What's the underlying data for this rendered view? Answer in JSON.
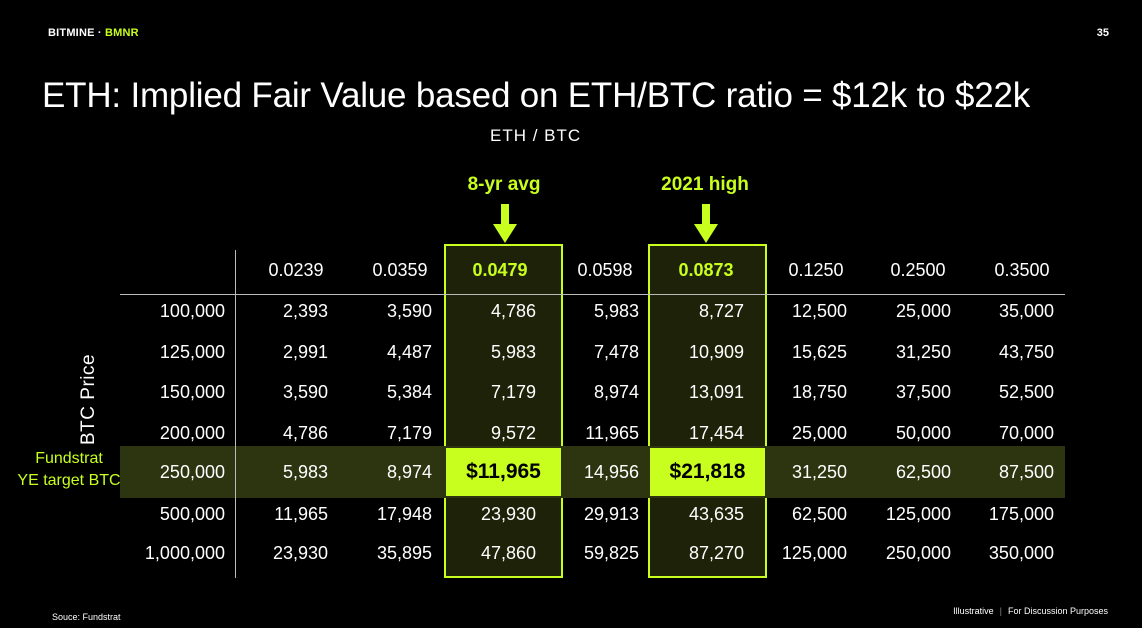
{
  "header": {
    "brand": "BITMINE",
    "separator": " · ",
    "ticker": "BMNR",
    "page_number": "35"
  },
  "title": "ETH: Implied Fair Value based on ETH/BTC ratio = $12k to $22k",
  "axis_top_label": "ETH / BTC",
  "axis_left_label": "BTC Price",
  "callouts": {
    "avg": "8-yr avg",
    "high": "2021 high"
  },
  "row_highlight_label": {
    "line1": "Fundstrat",
    "line2": "YE target BTC"
  },
  "colors": {
    "accent": "#c8ff1e",
    "background": "#000000"
  },
  "table": {
    "columns": [
      "0.0239",
      "0.0359",
      "0.0479",
      "0.0598",
      "0.0873",
      "0.1250",
      "0.2500",
      "0.3500"
    ],
    "rows": [
      {
        "btc": "100,000",
        "values": [
          "2,393",
          "3,590",
          "4,786",
          "5,983",
          "8,727",
          "12,500",
          "25,000",
          "35,000"
        ]
      },
      {
        "btc": "125,000",
        "values": [
          "2,991",
          "4,487",
          "5,983",
          "7,478",
          "10,909",
          "15,625",
          "31,250",
          "43,750"
        ]
      },
      {
        "btc": "150,000",
        "values": [
          "3,590",
          "5,384",
          "7,179",
          "8,974",
          "13,091",
          "18,750",
          "37,500",
          "52,500"
        ]
      },
      {
        "btc": "200,000",
        "values": [
          "4,786",
          "7,179",
          "9,572",
          "11,965",
          "17,454",
          "25,000",
          "50,000",
          "70,000"
        ]
      },
      {
        "btc": "250,000",
        "values": [
          "5,983",
          "8,974",
          "$11,965",
          "14,956",
          "$21,818",
          "31,250",
          "62,500",
          "87,500"
        ]
      },
      {
        "btc": "500,000",
        "values": [
          "11,965",
          "17,948",
          "23,930",
          "29,913",
          "43,635",
          "62,500",
          "125,000",
          "175,000"
        ]
      },
      {
        "btc": "1,000,000",
        "values": [
          "23,930",
          "35,895",
          "47,860",
          "59,825",
          "87,270",
          "125,000",
          "250,000",
          "350,000"
        ]
      }
    ]
  },
  "footer": {
    "source": "Souce: Fundstrat",
    "note_left": "Illustrative",
    "note_sep": "|",
    "note_right": "For Discussion Purposes"
  }
}
